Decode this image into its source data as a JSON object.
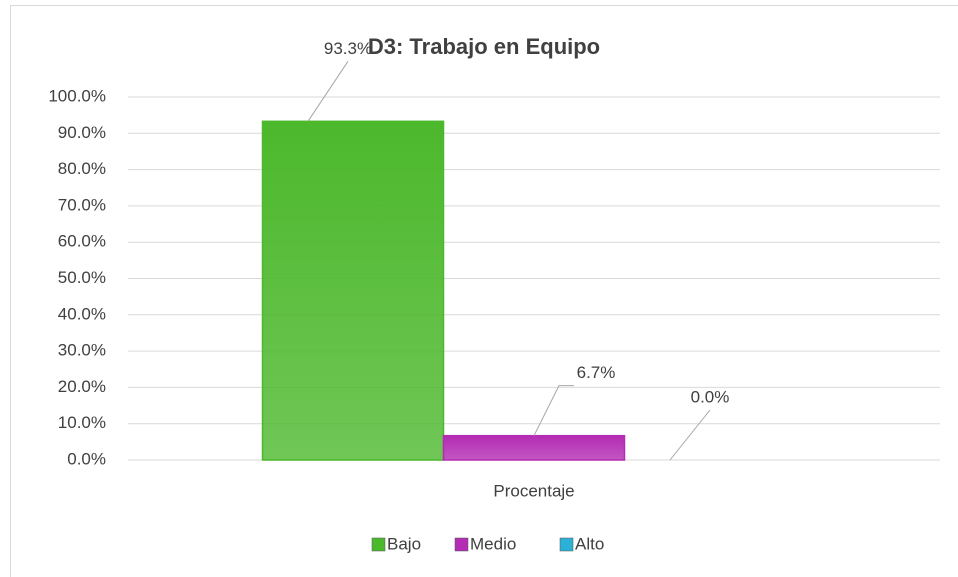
{
  "chart_data": {
    "type": "bar",
    "title": "D3: Trabajo en Equipo",
    "categories": [
      "Procentaje"
    ],
    "series": [
      {
        "name": "Bajo",
        "color": "#4cb82c",
        "values": [
          93.3
        ],
        "value_labels": [
          "93.3%"
        ]
      },
      {
        "name": "Medio",
        "color": "#b32cb3",
        "values": [
          6.7
        ],
        "value_labels": [
          "6.7%"
        ]
      },
      {
        "name": "Alto",
        "color": "#2cb0d6",
        "values": [
          0.0
        ],
        "value_labels": [
          "0.0%"
        ]
      }
    ],
    "ylim": [
      0,
      100
    ],
    "yticks": [
      {
        "value": 0,
        "label": "0.0%"
      },
      {
        "value": 10,
        "label": "10.0%"
      },
      {
        "value": 20,
        "label": "20.0%"
      },
      {
        "value": 30,
        "label": "30.0%"
      },
      {
        "value": 40,
        "label": "40.0%"
      },
      {
        "value": 50,
        "label": "50.0%"
      },
      {
        "value": 60,
        "label": "60.0%"
      },
      {
        "value": 70,
        "label": "70.0%"
      },
      {
        "value": 80,
        "label": "80.0%"
      },
      {
        "value": 90,
        "label": "90.0%"
      },
      {
        "value": 100,
        "label": "100.0%"
      }
    ],
    "grid": true,
    "legend": "bottom"
  }
}
